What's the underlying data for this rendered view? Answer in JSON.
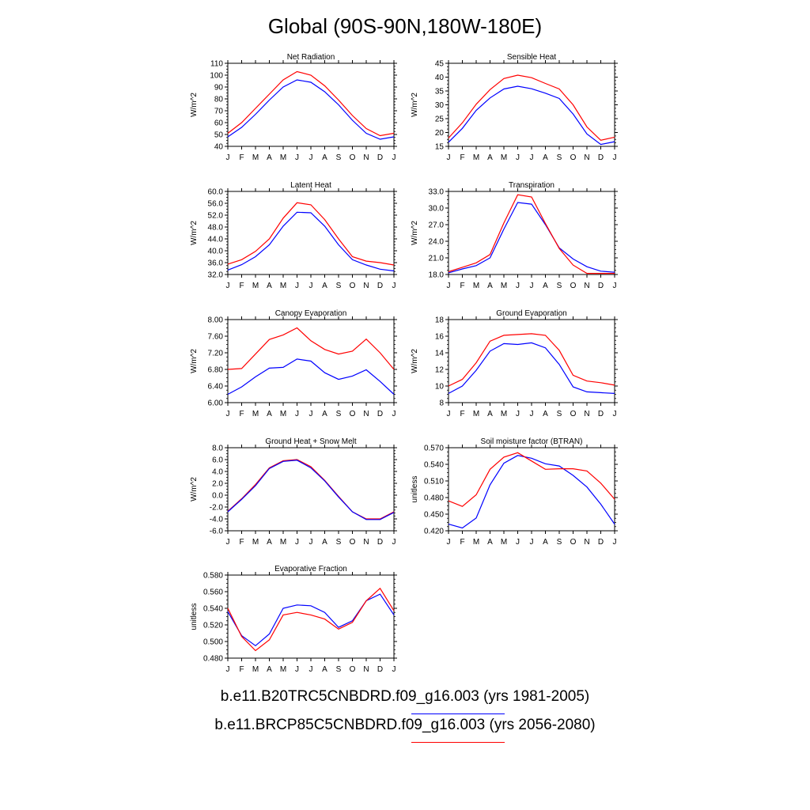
{
  "title": "Global (90S-90N,180W-180E)",
  "months": [
    "J",
    "F",
    "M",
    "A",
    "M",
    "J",
    "J",
    "A",
    "S",
    "O",
    "N",
    "D",
    "J"
  ],
  "legend": [
    {
      "label": "b.e11.B20TRC5CNBDRD.f09_g16.003 (yrs 1981-2005)",
      "color": "#0000ff"
    },
    {
      "label": "b.e11.BRCP85C5CNBDRD.f09_g16.003 (yrs 2056-2080)",
      "color": "#ff0000"
    }
  ],
  "chart_data": [
    {
      "type": "line",
      "title": "Net Radiation",
      "ylabel": "W/m^2",
      "ylim": [
        40,
        110
      ],
      "yticks": [
        "40",
        "50",
        "60",
        "70",
        "80",
        "90",
        "100",
        "110"
      ],
      "series": [
        {
          "color": "#0000ff",
          "values": [
            48,
            56,
            67,
            79,
            90,
            96,
            94,
            86,
            75,
            62,
            51,
            46,
            48
          ]
        },
        {
          "color": "#ff0000",
          "values": [
            51,
            60,
            72,
            84,
            96,
            103,
            100,
            91,
            79,
            66,
            55,
            49,
            51
          ]
        }
      ]
    },
    {
      "type": "line",
      "title": "Sensible Heat",
      "ylabel": "W/m^2",
      "ylim": [
        15,
        45
      ],
      "yticks": [
        "15",
        "20",
        "25",
        "30",
        "35",
        "40",
        "45"
      ],
      "series": [
        {
          "color": "#0000ff",
          "values": [
            16.5,
            21.5,
            28,
            32.5,
            35.7,
            36.7,
            35.8,
            34.2,
            32.3,
            26.7,
            19.5,
            15.7,
            16.7
          ]
        },
        {
          "color": "#ff0000",
          "values": [
            18,
            23.5,
            30.2,
            35.5,
            39.5,
            40.7,
            39.8,
            37.7,
            35.7,
            30,
            22,
            17.2,
            18.3
          ]
        }
      ]
    },
    {
      "type": "line",
      "title": "Latent Heat",
      "ylabel": "W/m^2",
      "ylim": [
        32,
        60
      ],
      "yticks": [
        "32.0",
        "36.0",
        "40.0",
        "44.0",
        "48.0",
        "52.0",
        "56.0",
        "60.0"
      ],
      "series": [
        {
          "color": "#0000ff",
          "values": [
            33.5,
            35.3,
            38,
            42,
            48.3,
            53,
            52.8,
            48.3,
            42,
            37,
            35.2,
            33.8,
            33.2
          ]
        },
        {
          "color": "#ff0000",
          "values": [
            35.5,
            37,
            39.8,
            44,
            51,
            56.2,
            55.5,
            50.5,
            44,
            38,
            36.5,
            36,
            35.2
          ]
        }
      ]
    },
    {
      "type": "line",
      "title": "Transpiration",
      "ylabel": "W/m^2",
      "ylim": [
        18,
        33
      ],
      "yticks": [
        "18.0",
        "21.0",
        "24.0",
        "27.0",
        "30.0",
        "33.0"
      ],
      "series": [
        {
          "color": "#0000ff",
          "values": [
            18.3,
            19,
            19.6,
            21,
            26.2,
            31,
            30.7,
            27,
            22.8,
            20.8,
            19.4,
            18.6,
            18.4
          ]
        },
        {
          "color": "#ff0000",
          "values": [
            18.5,
            19.3,
            20.1,
            21.6,
            27.3,
            32.4,
            32,
            27.2,
            22.7,
            19.7,
            18.2,
            18.2,
            18.2
          ]
        }
      ]
    },
    {
      "type": "line",
      "title": "Canopy Evaporation",
      "ylabel": "W/m^2",
      "ylim": [
        6.0,
        8.0
      ],
      "yticks": [
        "6.00",
        "6.40",
        "6.80",
        "7.20",
        "7.60",
        "8.00"
      ],
      "series": [
        {
          "color": "#0000ff",
          "values": [
            6.2,
            6.38,
            6.62,
            6.83,
            6.85,
            7.05,
            7.0,
            6.72,
            6.56,
            6.64,
            6.79,
            6.51,
            6.2
          ]
        },
        {
          "color": "#ff0000",
          "values": [
            6.8,
            6.82,
            7.17,
            7.52,
            7.63,
            7.8,
            7.49,
            7.28,
            7.17,
            7.24,
            7.53,
            7.2,
            6.8
          ]
        }
      ]
    },
    {
      "type": "line",
      "title": "Ground Evaporation",
      "ylabel": "W/m^2",
      "ylim": [
        8,
        18
      ],
      "yticks": [
        "8",
        "10",
        "12",
        "14",
        "16",
        "18"
      ],
      "series": [
        {
          "color": "#0000ff",
          "values": [
            9.1,
            10,
            11.9,
            14.2,
            15.1,
            15,
            15.2,
            14.6,
            12.6,
            9.9,
            9.3,
            9.2,
            9.1
          ]
        },
        {
          "color": "#ff0000",
          "values": [
            10,
            10.8,
            12.8,
            15.4,
            16.1,
            16.2,
            16.3,
            16.1,
            14.3,
            11.3,
            10.6,
            10.4,
            10.1
          ]
        }
      ]
    },
    {
      "type": "line",
      "title": "Ground Heat + Snow Melt",
      "ylabel": "W/m^2",
      "ylim": [
        -6.0,
        8.0
      ],
      "yticks": [
        "-6.0",
        "-4.0",
        "-2.0",
        "0.0",
        "2.0",
        "4.0",
        "6.0",
        "8.0"
      ],
      "series": [
        {
          "color": "#ff0000",
          "values": [
            -2.7,
            -0.6,
            1.8,
            4.6,
            5.8,
            6.0,
            4.8,
            2.5,
            -0.2,
            -2.8,
            -4.0,
            -4.0,
            -2.8
          ]
        },
        {
          "color": "#0000ff",
          "values": [
            -2.8,
            -0.7,
            1.6,
            4.5,
            5.7,
            5.9,
            4.6,
            2.4,
            -0.3,
            -2.8,
            -4.1,
            -4.1,
            -2.9
          ]
        }
      ]
    },
    {
      "type": "line",
      "title": "Soil moisture factor (BTRAN)",
      "ylabel": "unitless",
      "ylim": [
        0.42,
        0.57
      ],
      "yticks": [
        "0.420",
        "0.450",
        "0.480",
        "0.510",
        "0.540",
        "0.570"
      ],
      "series": [
        {
          "color": "#0000ff",
          "values": [
            0.432,
            0.425,
            0.443,
            0.503,
            0.542,
            0.556,
            0.551,
            0.541,
            0.537,
            0.52,
            0.499,
            0.468,
            0.432
          ]
        },
        {
          "color": "#ff0000",
          "values": [
            0.474,
            0.464,
            0.485,
            0.531,
            0.553,
            0.561,
            0.546,
            0.531,
            0.532,
            0.532,
            0.528,
            0.506,
            0.477
          ]
        }
      ]
    },
    {
      "type": "line",
      "title": "Evaporative Fraction",
      "ylabel": "unitless",
      "ylim": [
        0.48,
        0.58
      ],
      "yticks": [
        "0.480",
        "0.500",
        "0.520",
        "0.540",
        "0.560",
        "0.580"
      ],
      "series": [
        {
          "color": "#0000ff",
          "values": [
            0.536,
            0.507,
            0.495,
            0.509,
            0.54,
            0.544,
            0.543,
            0.535,
            0.517,
            0.525,
            0.549,
            0.557,
            0.532
          ]
        },
        {
          "color": "#ff0000",
          "values": [
            0.54,
            0.506,
            0.489,
            0.502,
            0.532,
            0.535,
            0.532,
            0.527,
            0.515,
            0.523,
            0.549,
            0.564,
            0.537
          ]
        }
      ]
    }
  ]
}
